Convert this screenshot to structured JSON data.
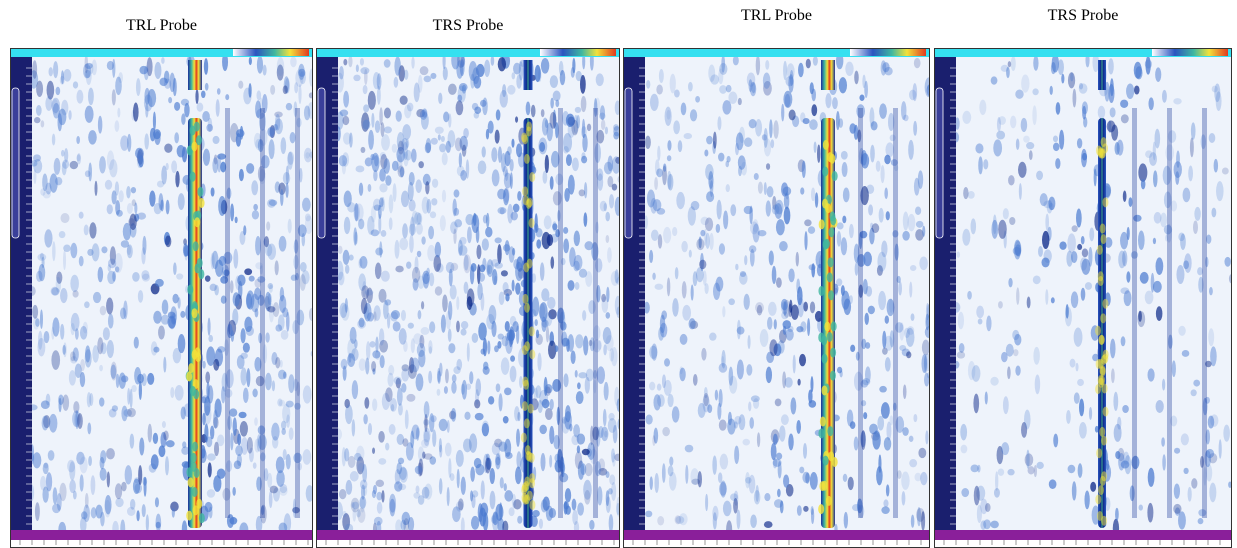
{
  "panels": [
    {
      "caption": "TRL Probe"
    },
    {
      "caption": "TRS Probe"
    },
    {
      "caption": "TRL Probe"
    },
    {
      "caption": "TRS Probe"
    }
  ]
}
